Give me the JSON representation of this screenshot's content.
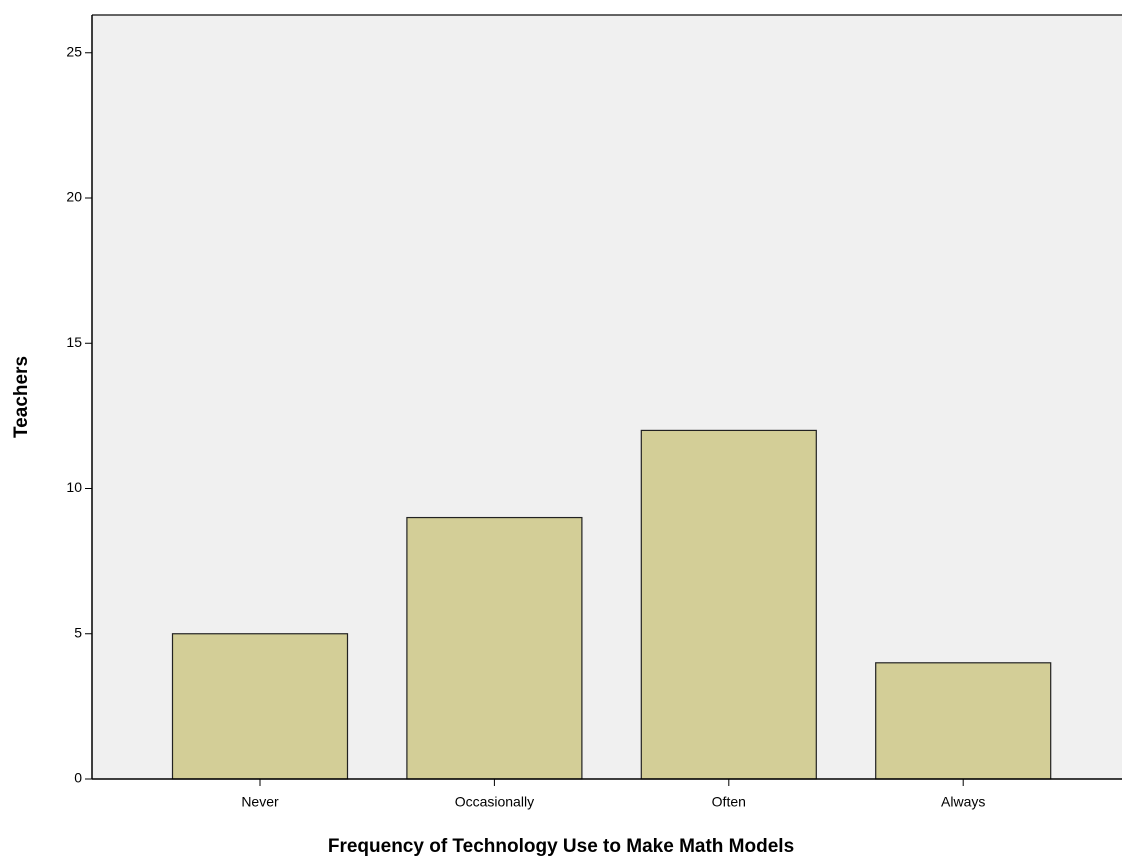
{
  "chart_data": {
    "type": "bar",
    "x_label": "Frequency of Technology Use to Make Math Models",
    "y_label": "Teachers",
    "categories": [
      "Never",
      "Occasionally",
      "Often",
      "Always"
    ],
    "values": [
      5,
      9,
      12,
      4
    ],
    "color": "#d3ce97",
    "ylim": [
      0,
      26.3
    ],
    "yticks": [
      0,
      5,
      10,
      15,
      20,
      25
    ],
    "grid": false
  }
}
